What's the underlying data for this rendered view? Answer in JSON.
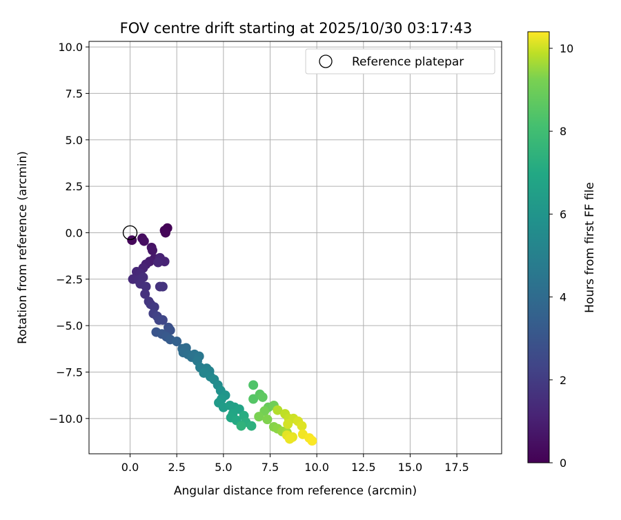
{
  "chart_data": {
    "type": "scatter",
    "title": "FOV centre drift starting at 2025/10/30 03:17:43",
    "xlabel": "Angular distance from reference (arcmin)",
    "ylabel": "Rotation from reference (arcmin)",
    "xlim": [
      -2.2,
      19.9
    ],
    "ylim": [
      -11.9,
      10.3
    ],
    "xticks": [
      0.0,
      2.5,
      5.0,
      7.5,
      10.0,
      12.5,
      15.0,
      17.5
    ],
    "yticks": [
      10.0,
      7.5,
      5.0,
      2.5,
      0.0,
      -2.5,
      -5.0,
      -7.5,
      -10.0
    ],
    "xtick_labels": [
      "0.0",
      "2.5",
      "5.0",
      "7.5",
      "10.0",
      "12.5",
      "15.0",
      "17.5"
    ],
    "ytick_labels": [
      "10.0",
      "7.5",
      "5.0",
      "2.5",
      "0.0",
      "−2.5",
      "−5.0",
      "−7.5",
      "−10.0"
    ],
    "grid": true,
    "legend": {
      "position": "top-right",
      "entries": [
        "Reference platepar"
      ]
    },
    "reference_point": {
      "x": 0.0,
      "y": 0.0,
      "marker": "open-circle"
    },
    "colorbar": {
      "label": "Hours from first FF file",
      "range": [
        0,
        10.4
      ],
      "ticks": [
        0,
        2,
        4,
        6,
        8,
        10
      ],
      "tick_labels": [
        "0",
        "2",
        "4",
        "6",
        "8",
        "10"
      ],
      "colormap": "viridis"
    },
    "points": [
      {
        "x": 2.0,
        "y": 0.25,
        "t": 0.05
      },
      {
        "x": 1.85,
        "y": 0.12,
        "t": 0.1
      },
      {
        "x": 1.9,
        "y": 0.0,
        "t": 0.15
      },
      {
        "x": 0.1,
        "y": -0.4,
        "t": 0.2
      },
      {
        "x": 0.65,
        "y": -0.3,
        "t": 0.3
      },
      {
        "x": 0.75,
        "y": -0.45,
        "t": 0.4
      },
      {
        "x": 1.15,
        "y": -0.8,
        "t": 0.5
      },
      {
        "x": 1.2,
        "y": -0.95,
        "t": 0.6
      },
      {
        "x": 1.3,
        "y": -1.4,
        "t": 0.7
      },
      {
        "x": 1.05,
        "y": -1.55,
        "t": 0.8
      },
      {
        "x": 0.85,
        "y": -1.7,
        "t": 0.9
      },
      {
        "x": 0.7,
        "y": -1.9,
        "t": 1.0
      },
      {
        "x": 1.6,
        "y": -1.35,
        "t": 1.0
      },
      {
        "x": 1.85,
        "y": -1.55,
        "t": 1.05
      },
      {
        "x": 1.5,
        "y": -1.6,
        "t": 1.1
      },
      {
        "x": 0.35,
        "y": -2.1,
        "t": 1.15
      },
      {
        "x": 0.55,
        "y": -2.2,
        "t": 1.2
      },
      {
        "x": 0.15,
        "y": -2.5,
        "t": 1.25
      },
      {
        "x": 0.45,
        "y": -2.55,
        "t": 1.3
      },
      {
        "x": 0.7,
        "y": -2.4,
        "t": 1.35
      },
      {
        "x": 0.55,
        "y": -2.75,
        "t": 1.4
      },
      {
        "x": 0.85,
        "y": -2.9,
        "t": 1.45
      },
      {
        "x": 0.8,
        "y": -3.3,
        "t": 1.5
      },
      {
        "x": 1.6,
        "y": -2.9,
        "t": 1.5
      },
      {
        "x": 1.75,
        "y": -2.9,
        "t": 1.55
      },
      {
        "x": 1.0,
        "y": -3.7,
        "t": 1.6
      },
      {
        "x": 1.1,
        "y": -3.85,
        "t": 1.7
      },
      {
        "x": 1.3,
        "y": -4.0,
        "t": 1.8
      },
      {
        "x": 1.25,
        "y": -4.35,
        "t": 1.9
      },
      {
        "x": 1.45,
        "y": -4.5,
        "t": 2.0
      },
      {
        "x": 1.55,
        "y": -4.7,
        "t": 2.1
      },
      {
        "x": 1.75,
        "y": -4.7,
        "t": 2.2
      },
      {
        "x": 2.05,
        "y": -5.1,
        "t": 2.5
      },
      {
        "x": 2.15,
        "y": -5.25,
        "t": 2.6
      },
      {
        "x": 1.4,
        "y": -5.35,
        "t": 2.7
      },
      {
        "x": 1.7,
        "y": -5.45,
        "t": 2.8
      },
      {
        "x": 1.95,
        "y": -5.6,
        "t": 2.9
      },
      {
        "x": 2.15,
        "y": -5.75,
        "t": 3.0
      },
      {
        "x": 2.5,
        "y": -5.85,
        "t": 3.2
      },
      {
        "x": 2.8,
        "y": -6.25,
        "t": 3.5
      },
      {
        "x": 3.0,
        "y": -6.2,
        "t": 3.6
      },
      {
        "x": 2.85,
        "y": -6.45,
        "t": 3.7
      },
      {
        "x": 3.1,
        "y": -6.55,
        "t": 3.8
      },
      {
        "x": 3.3,
        "y": -6.7,
        "t": 3.9
      },
      {
        "x": 3.45,
        "y": -6.55,
        "t": 4.0
      },
      {
        "x": 3.7,
        "y": -6.65,
        "t": 4.1
      },
      {
        "x": 3.6,
        "y": -6.9,
        "t": 4.2
      },
      {
        "x": 3.75,
        "y": -7.25,
        "t": 4.4
      },
      {
        "x": 4.1,
        "y": -7.3,
        "t": 4.5
      },
      {
        "x": 4.25,
        "y": -7.45,
        "t": 4.6
      },
      {
        "x": 3.95,
        "y": -7.55,
        "t": 4.7
      },
      {
        "x": 4.3,
        "y": -7.75,
        "t": 4.8
      },
      {
        "x": 4.5,
        "y": -7.9,
        "t": 4.9
      },
      {
        "x": 4.7,
        "y": -8.2,
        "t": 5.0
      },
      {
        "x": 4.85,
        "y": -8.5,
        "t": 5.2
      },
      {
        "x": 5.1,
        "y": -8.75,
        "t": 5.4
      },
      {
        "x": 4.9,
        "y": -8.95,
        "t": 5.5
      },
      {
        "x": 4.75,
        "y": -9.15,
        "t": 5.6
      },
      {
        "x": 5.0,
        "y": -9.4,
        "t": 5.7
      },
      {
        "x": 5.35,
        "y": -9.3,
        "t": 5.8
      },
      {
        "x": 5.6,
        "y": -9.4,
        "t": 5.9
      },
      {
        "x": 5.85,
        "y": -9.5,
        "t": 6.0
      },
      {
        "x": 5.5,
        "y": -9.75,
        "t": 6.1
      },
      {
        "x": 5.4,
        "y": -9.95,
        "t": 6.2
      },
      {
        "x": 5.7,
        "y": -10.1,
        "t": 6.3
      },
      {
        "x": 6.1,
        "y": -9.85,
        "t": 6.4
      },
      {
        "x": 6.2,
        "y": -10.2,
        "t": 6.5
      },
      {
        "x": 6.5,
        "y": -10.4,
        "t": 6.6
      },
      {
        "x": 5.95,
        "y": -10.4,
        "t": 6.7
      },
      {
        "x": 6.6,
        "y": -8.2,
        "t": 7.5
      },
      {
        "x": 6.6,
        "y": -8.95,
        "t": 7.6
      },
      {
        "x": 6.95,
        "y": -8.7,
        "t": 7.7
      },
      {
        "x": 7.1,
        "y": -8.85,
        "t": 7.8
      },
      {
        "x": 7.4,
        "y": -9.4,
        "t": 8.0
      },
      {
        "x": 7.7,
        "y": -9.3,
        "t": 8.1
      },
      {
        "x": 7.2,
        "y": -9.6,
        "t": 8.2
      },
      {
        "x": 6.9,
        "y": -9.9,
        "t": 8.3
      },
      {
        "x": 7.35,
        "y": -10.05,
        "t": 8.4
      },
      {
        "x": 7.7,
        "y": -10.45,
        "t": 8.5
      },
      {
        "x": 7.9,
        "y": -10.55,
        "t": 8.6
      },
      {
        "x": 8.15,
        "y": -10.7,
        "t": 8.8
      },
      {
        "x": 8.4,
        "y": -10.75,
        "t": 9.0
      },
      {
        "x": 7.9,
        "y": -9.55,
        "t": 9.2
      },
      {
        "x": 8.3,
        "y": -9.75,
        "t": 9.4
      },
      {
        "x": 8.5,
        "y": -10.0,
        "t": 9.5
      },
      {
        "x": 8.75,
        "y": -10.0,
        "t": 9.6
      },
      {
        "x": 8.45,
        "y": -10.3,
        "t": 9.7
      },
      {
        "x": 9.0,
        "y": -10.15,
        "t": 9.8
      },
      {
        "x": 9.2,
        "y": -10.4,
        "t": 9.9
      },
      {
        "x": 8.4,
        "y": -10.9,
        "t": 10.0
      },
      {
        "x": 8.7,
        "y": -11.0,
        "t": 10.05
      },
      {
        "x": 8.55,
        "y": -11.1,
        "t": 10.1
      },
      {
        "x": 9.25,
        "y": -10.85,
        "t": 10.2
      },
      {
        "x": 9.6,
        "y": -11.05,
        "t": 10.3
      },
      {
        "x": 9.75,
        "y": -11.2,
        "t": 10.35
      }
    ]
  }
}
